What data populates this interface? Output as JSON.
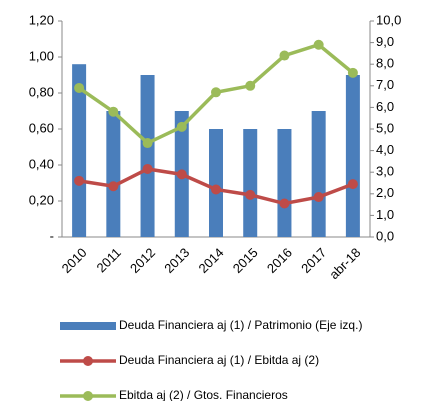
{
  "chart_data": {
    "type": "bar-line",
    "categories": [
      "2010",
      "2011",
      "2012",
      "2013",
      "2014",
      "2015",
      "2016",
      "2017",
      "abr-18"
    ],
    "series": [
      {
        "name": "Deuda Financiera aj (1) / Patrimonio (Eje izq.)",
        "type": "bar",
        "color": "#4a7ebb",
        "values": [
          0.96,
          0.7,
          0.9,
          0.7,
          0.6,
          0.6,
          0.6,
          0.7,
          0.9
        ]
      },
      {
        "name": "Deuda Financiera aj (1) / Ebitda aj (2)",
        "type": "line",
        "axis": "y2",
        "color": "#be4b48",
        "values": [
          2.6,
          2.35,
          3.15,
          2.9,
          2.2,
          1.95,
          1.55,
          1.85,
          2.45
        ]
      },
      {
        "name": "Ebitda aj (2) / Gtos. Financieros",
        "type": "line",
        "axis": "y2",
        "color": "#9bbb59",
        "values": [
          6.9,
          5.8,
          4.35,
          5.1,
          6.7,
          7.0,
          8.4,
          8.9,
          7.6
        ]
      }
    ],
    "ylim": [
      0,
      1.2
    ],
    "yticks": [
      {
        "value": 0,
        "label": "-"
      },
      {
        "value": 0.2,
        "label": "0,20"
      },
      {
        "value": 0.4,
        "label": "0,40"
      },
      {
        "value": 0.6,
        "label": "0,60"
      },
      {
        "value": 0.8,
        "label": "0,80"
      },
      {
        "value": 1.0,
        "label": "1,00"
      },
      {
        "value": 1.2,
        "label": "1,20"
      }
    ],
    "y2lim": [
      0,
      10
    ],
    "y2ticks": [
      {
        "value": 0,
        "label": "0,0"
      },
      {
        "value": 1,
        "label": "1,0"
      },
      {
        "value": 2,
        "label": "2,0"
      },
      {
        "value": 3,
        "label": "3,0"
      },
      {
        "value": 4,
        "label": "4,0"
      },
      {
        "value": 5,
        "label": "5,0"
      },
      {
        "value": 6,
        "label": "6,0"
      },
      {
        "value": 7,
        "label": "7,0"
      },
      {
        "value": 8,
        "label": "8,0"
      },
      {
        "value": 9,
        "label": "9,0"
      },
      {
        "value": 10,
        "label": "10,0"
      }
    ]
  }
}
